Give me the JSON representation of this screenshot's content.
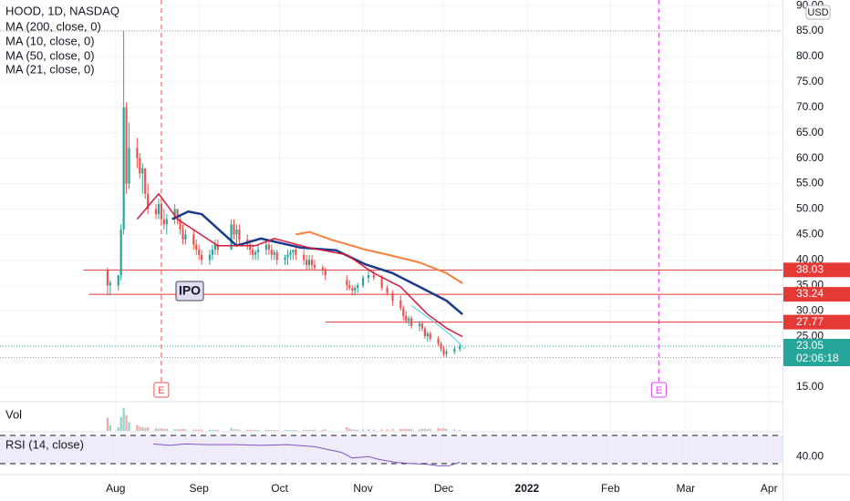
{
  "chart_data": {
    "type": "candlestick",
    "title": "HOOD, 1D, NASDAQ",
    "currency": "USD",
    "x": [
      -3,
      -2,
      1,
      2,
      3,
      4,
      5,
      8,
      9,
      10,
      11,
      12,
      15,
      16,
      17,
      18,
      19,
      22,
      23,
      24,
      25,
      26,
      29,
      30,
      31,
      32,
      35,
      36,
      37,
      38,
      43,
      44,
      45,
      46,
      49,
      50,
      51,
      52,
      53,
      56,
      57,
      58,
      59,
      60,
      63,
      64,
      65,
      66,
      67,
      70,
      71,
      72,
      73,
      74,
      77,
      78,
      86,
      87,
      88,
      89,
      90,
      92,
      94,
      96,
      99,
      101,
      103,
      106,
      107,
      108,
      109,
      110,
      113,
      114,
      115,
      116,
      117,
      120,
      121,
      122,
      123,
      126,
      128
    ],
    "open": [
      38,
      35,
      35,
      37,
      46,
      70,
      55,
      62,
      60,
      57,
      58,
      53,
      50,
      49,
      51,
      48,
      47,
      48,
      50,
      48,
      46,
      44,
      45,
      43,
      42,
      41,
      40,
      41,
      42,
      43,
      42,
      47,
      45,
      46,
      44,
      43,
      42,
      41,
      41.5,
      42,
      43,
      42,
      41,
      41.5,
      40,
      40.5,
      41,
      41.5,
      42,
      41,
      40,
      39,
      40,
      39,
      38.5,
      38,
      36,
      35,
      34.5,
      34,
      34.5,
      35,
      36.5,
      37,
      36.5,
      34.5,
      33.5,
      32,
      30.5,
      29,
      28,
      28.5,
      27,
      27.5,
      26.5,
      25,
      25.5,
      24.5,
      23.5,
      22.5,
      21.5,
      22,
      22.5
    ],
    "high": [
      38.5,
      36,
      37,
      47,
      85,
      71,
      67,
      64,
      61,
      59,
      58,
      55,
      51,
      52,
      52,
      50,
      49,
      51,
      50,
      49,
      47,
      46,
      46,
      44,
      43,
      42,
      42,
      43,
      44,
      44,
      48,
      48,
      47,
      47,
      45,
      44,
      43,
      42,
      43,
      44,
      44,
      43,
      42,
      42,
      41,
      42,
      42,
      42,
      43,
      42,
      41,
      41,
      41,
      40,
      39,
      38.5,
      37,
      36,
      35,
      35,
      35.5,
      37,
      38,
      38,
      37,
      35,
      34,
      33,
      31,
      30,
      29,
      29,
      28,
      28,
      27,
      26,
      26,
      25,
      24,
      23,
      22.5,
      23,
      23.5
    ],
    "low": [
      33,
      33,
      34,
      36,
      45,
      53,
      54,
      58,
      56,
      53,
      52,
      49,
      48,
      48,
      47,
      46,
      45,
      47,
      47,
      45,
      43,
      43,
      42,
      41,
      40,
      39,
      39,
      40,
      41,
      41,
      42,
      44,
      43,
      43,
      42,
      41,
      40,
      40,
      40,
      41,
      41,
      40,
      40,
      39,
      39,
      39,
      40,
      40,
      40,
      39,
      38,
      38,
      38,
      38,
      37,
      36,
      34,
      34,
      33,
      33,
      33.5,
      34.5,
      35.5,
      36,
      34,
      33,
      31,
      30,
      28,
      27.5,
      27,
      26.5,
      26,
      26,
      24.5,
      24,
      24,
      23,
      22,
      21,
      20.8,
      21.5,
      22
    ],
    "close": [
      35,
      35.5,
      37,
      46,
      70,
      55,
      62,
      60,
      57,
      58,
      53,
      50,
      49,
      51,
      48,
      47,
      48,
      50,
      48,
      46,
      44,
      45,
      43,
      42,
      41,
      40,
      41,
      42,
      43,
      42,
      47,
      45,
      46,
      44,
      43,
      42,
      41,
      41.5,
      42,
      43,
      42,
      41,
      41.5,
      40,
      40.5,
      41,
      41.5,
      42,
      41,
      40,
      39,
      40,
      39,
      38.5,
      38,
      37,
      35,
      34.5,
      34,
      34.5,
      35,
      36.5,
      37,
      36.5,
      34.5,
      33.5,
      32,
      30.5,
      29,
      28,
      28.5,
      27,
      27.5,
      26.5,
      25,
      25.5,
      24.5,
      23.5,
      22.5,
      21.5,
      22,
      22.5,
      23.05
    ],
    "volume": [
      90,
      40,
      25,
      95,
      160,
      110,
      60,
      40,
      30,
      25,
      22,
      25,
      18,
      15,
      17,
      15,
      13,
      12,
      11,
      12,
      14,
      10,
      10,
      9,
      9,
      10,
      8,
      8,
      8,
      7,
      20,
      12,
      10,
      9,
      8,
      8,
      7,
      7,
      7,
      8,
      7,
      7,
      6,
      7,
      6,
      6,
      6,
      6,
      7,
      7,
      8,
      7,
      7,
      8,
      8,
      10,
      25,
      14,
      11,
      9,
      8,
      10,
      11,
      9,
      10,
      10,
      13,
      14,
      15,
      14,
      12,
      12,
      11,
      12,
      15,
      13,
      12,
      20,
      16,
      18,
      14,
      10,
      7
    ],
    "up_color": "#26a69a",
    "down_color": "#ef5350",
    "xlim": [
      -43,
      248
    ],
    "xticks": [
      {
        "value": 0,
        "label": "Aug"
      },
      {
        "value": 31,
        "label": "Sep"
      },
      {
        "value": 61,
        "label": "Oct"
      },
      {
        "value": 92,
        "label": "Nov"
      },
      {
        "value": 122,
        "label": "Dec"
      },
      {
        "value": 153,
        "label": "2022"
      },
      {
        "value": 184,
        "label": "Feb"
      },
      {
        "value": 212,
        "label": "Mar"
      },
      {
        "value": 243,
        "label": "Apr"
      }
    ],
    "ylim": [
      12.3,
      91.1
    ],
    "yticks": [
      {
        "value": 15,
        "label": "15.00"
      },
      {
        "value": 20,
        "label": "20.00"
      },
      {
        "value": 25,
        "label": "25.00"
      },
      {
        "value": 30,
        "label": "30.00"
      },
      {
        "value": 35,
        "label": "35.00"
      },
      {
        "value": 40,
        "label": "40.00"
      },
      {
        "value": 45,
        "label": "45.00"
      },
      {
        "value": 50,
        "label": "50.00"
      },
      {
        "value": 55,
        "label": "55.00"
      },
      {
        "value": 60,
        "label": "60.00"
      },
      {
        "value": 65,
        "label": "65.00"
      },
      {
        "value": 70,
        "label": "70.00"
      },
      {
        "value": 75,
        "label": "75.00"
      },
      {
        "value": 80,
        "label": "80.00"
      },
      {
        "value": 85,
        "label": "85.00"
      },
      {
        "value": 90,
        "label": "90.00"
      }
    ],
    "grid": true,
    "series": [
      {
        "name": "MA (200, close, 0)",
        "color": "#f7803a",
        "x": [
          67,
          72,
          80,
          93,
          103,
          113,
          123,
          129
        ],
        "values": [
          45,
          45.5,
          44,
          42,
          40.8,
          39.5,
          37.4,
          35.4
        ]
      },
      {
        "name": "MA (10, close, 0)",
        "color": "#4dd0e1",
        "x": [
          110,
          118,
          124,
          130
        ],
        "values": [
          31,
          28,
          25.5,
          22.5
        ]
      },
      {
        "name": "MA (50, close, 0)",
        "color": "#1a3a8c",
        "x": [
          21,
          27,
          32,
          45,
          54,
          69,
          82,
          93,
          103,
          113,
          123,
          129
        ],
        "values": [
          48,
          49.5,
          49,
          42.8,
          44.2,
          42.4,
          41.9,
          39.1,
          37.4,
          34.7,
          32,
          29.3
        ]
      },
      {
        "name": "MA (21, close, 0)",
        "color": "#d81b3c",
        "x": [
          8,
          16,
          23,
          38,
          52,
          59,
          72,
          86,
          96,
          106,
          116,
          123,
          129
        ],
        "values": [
          48,
          53,
          48,
          42.8,
          42.8,
          44.2,
          42.4,
          41,
          37.4,
          34.7,
          29.3,
          26.6,
          24.9
        ]
      }
    ],
    "levels": [
      {
        "value": 38.03,
        "from": -12,
        "color": "#e53935"
      },
      {
        "value": 33.24,
        "from": -10,
        "color": "#e53935"
      },
      {
        "value": 27.77,
        "from": 78,
        "color": "#e53935"
      }
    ],
    "last_price": {
      "value": 23.05,
      "countdown": "02:06:18",
      "color": "#26a69a"
    },
    "high_line": 85,
    "low_line": 20.8,
    "events": [
      {
        "x": 17,
        "label": "E",
        "color": "#ef5350"
      },
      {
        "x": 202,
        "label": "E",
        "color": "#e040fb"
      }
    ],
    "annotations": [
      {
        "text": "IPO"
      }
    ],
    "volume_label": "Vol",
    "volume_lim": [
      0,
      170
    ],
    "rsi": {
      "name": "RSI (14, close)",
      "color": "#7e57c2",
      "x": [
        14,
        20,
        26,
        34,
        44,
        54,
        64,
        74,
        84,
        88,
        94,
        98,
        104,
        110,
        116,
        120,
        124,
        128
      ],
      "values": [
        58,
        56,
        58,
        57,
        57,
        56,
        57,
        54,
        46,
        38,
        40,
        36,
        32,
        30,
        29,
        27,
        27,
        32
      ],
      "ylim": [
        15.8,
        75.2
      ],
      "yticks": [
        {
          "value": 40,
          "label": "40.00"
        }
      ],
      "bands": [
        30,
        70
      ]
    }
  }
}
